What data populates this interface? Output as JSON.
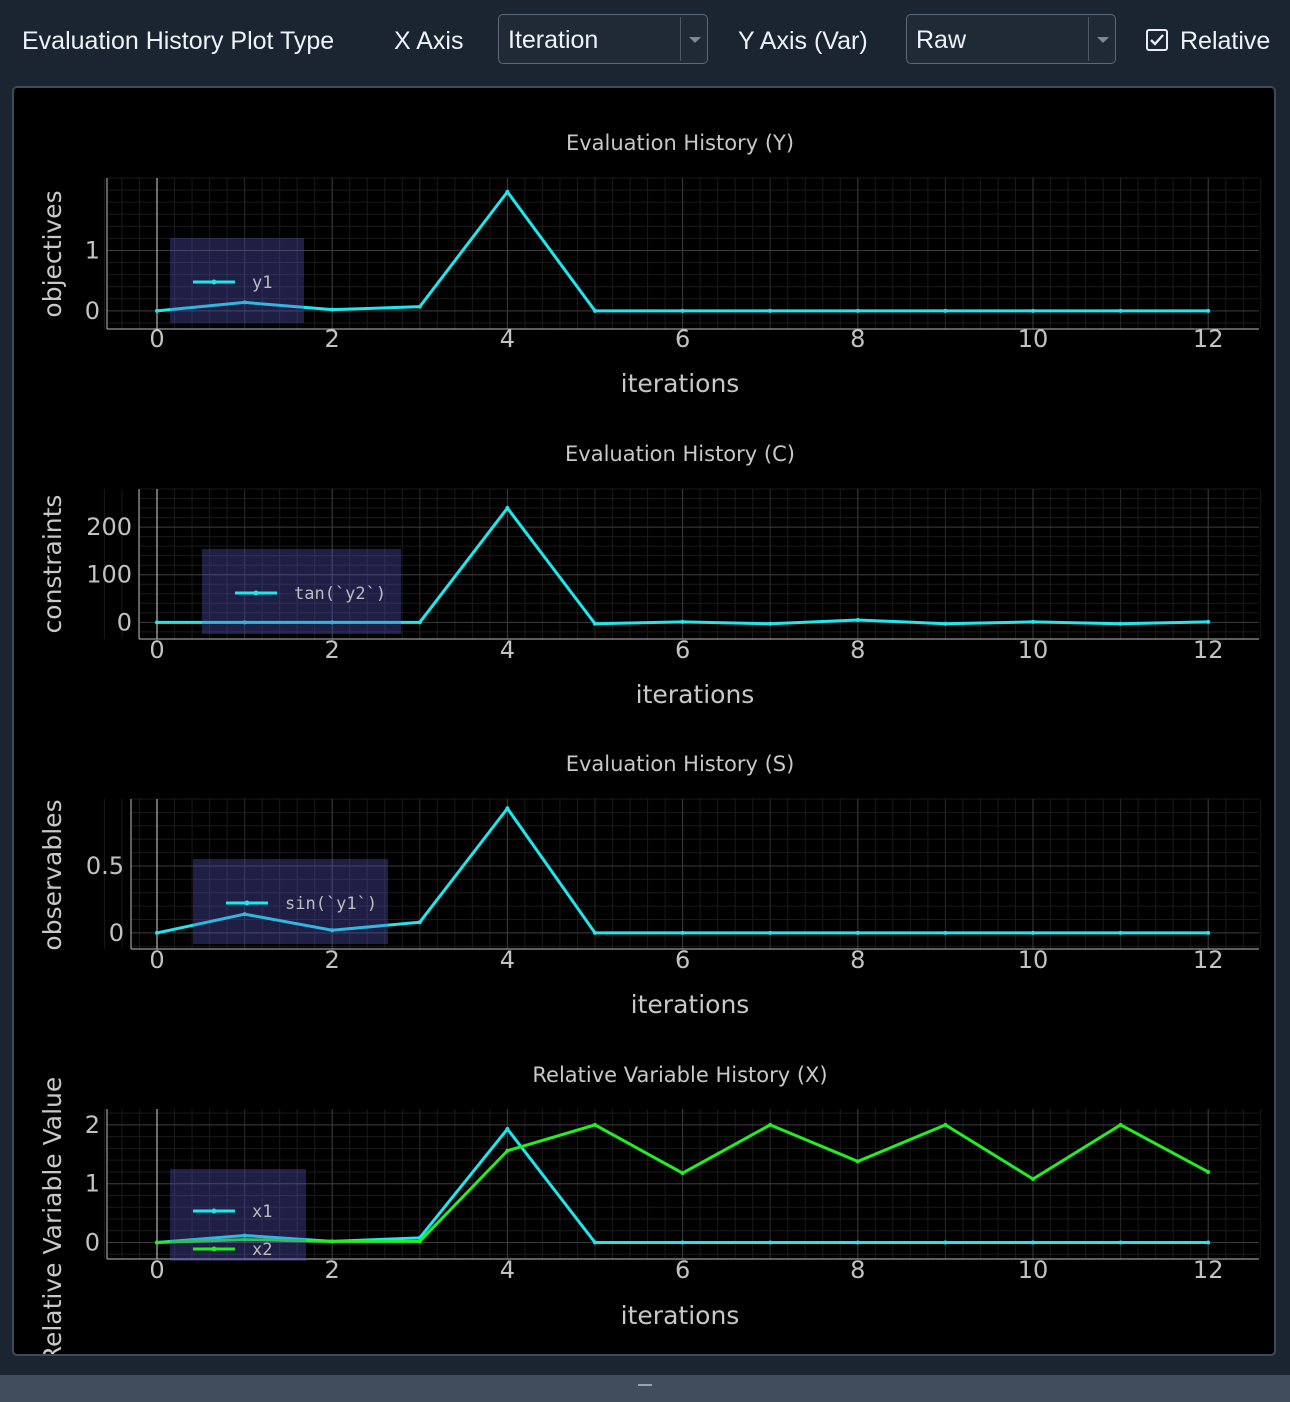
{
  "toolbar": {
    "plot_type_label": "Evaluation History Plot Type",
    "x_axis_label": "X Axis",
    "x_axis_value": "Iteration",
    "y_axis_label": "Y Axis (Var)",
    "y_axis_value": "Raw",
    "relative_label": "Relative",
    "relative_checked": true
  },
  "chart_data": [
    {
      "type": "line",
      "title": "Evaluation History (Y)",
      "xlabel": "iterations",
      "ylabel": "objectives",
      "xlim": [
        -0.6,
        12.6
      ],
      "ylim": [
        -0.3,
        2.2
      ],
      "xticks": [
        0,
        2,
        4,
        6,
        8,
        10,
        12
      ],
      "yticks": [
        0,
        1
      ],
      "grid": true,
      "legend": "top-left",
      "x": [
        0,
        1,
        2,
        3,
        4,
        5,
        6,
        7,
        8,
        9,
        10,
        11,
        12
      ],
      "series": [
        {
          "name": "y1",
          "color": "#1ee8ee",
          "values": [
            0,
            0.14,
            0.02,
            0.07,
            1.97,
            0,
            0,
            0,
            0,
            0,
            0,
            0,
            0
          ]
        }
      ]
    },
    {
      "type": "line",
      "title": "Evaluation History (C)",
      "xlabel": "iterations",
      "ylabel": "constraints",
      "xlim": [
        -0.6,
        12.6
      ],
      "ylim": [
        -35,
        280
      ],
      "xticks": [
        0,
        2,
        4,
        6,
        8,
        10,
        12
      ],
      "yticks": [
        0,
        100,
        200
      ],
      "grid": true,
      "legend": "top-left",
      "x": [
        0,
        1,
        2,
        3,
        4,
        5,
        6,
        7,
        8,
        9,
        10,
        11,
        12
      ],
      "series": [
        {
          "name": "tan(`y2`)",
          "color": "#1ee8ee",
          "values": [
            0,
            0,
            0,
            0,
            240,
            -3,
            1,
            -3,
            5,
            -3,
            1,
            -3,
            1
          ]
        }
      ]
    },
    {
      "type": "line",
      "title": "Evaluation History (S)",
      "xlabel": "iterations",
      "ylabel": "observables",
      "xlim": [
        -0.6,
        12.6
      ],
      "ylim": [
        -0.12,
        1.0
      ],
      "xticks": [
        0,
        2,
        4,
        6,
        8,
        10,
        12
      ],
      "yticks": [
        0,
        0.5
      ],
      "grid": true,
      "legend": "top-left",
      "x": [
        0,
        1,
        2,
        3,
        4,
        5,
        6,
        7,
        8,
        9,
        10,
        11,
        12
      ],
      "series": [
        {
          "name": "sin(`y1`)",
          "color": "#1ee8ee",
          "values": [
            0,
            0.14,
            0.02,
            0.08,
            0.93,
            0,
            0,
            0,
            0,
            0,
            0,
            0,
            0
          ]
        }
      ]
    },
    {
      "type": "line",
      "title": "Relative Variable History (X)",
      "xlabel": "iterations",
      "ylabel": "Relative Variable Value",
      "xlim": [
        -0.6,
        12.6
      ],
      "ylim": [
        -0.28,
        2.27
      ],
      "xticks": [
        0,
        2,
        4,
        6,
        8,
        10,
        12
      ],
      "yticks": [
        0,
        1,
        2
      ],
      "grid": true,
      "legend": "top-left",
      "x": [
        0,
        1,
        2,
        3,
        4,
        5,
        6,
        7,
        8,
        9,
        10,
        11,
        12
      ],
      "series": [
        {
          "name": "x1",
          "color": "#1ee8ee",
          "values": [
            0,
            0.12,
            0.02,
            0.08,
            1.93,
            0,
            0,
            0,
            0,
            0,
            0,
            0,
            0
          ]
        },
        {
          "name": "x2",
          "color": "#22ee22",
          "values": [
            0,
            0.05,
            0.02,
            0.02,
            1.56,
            2.0,
            1.18,
            2.0,
            1.38,
            2.0,
            1.08,
            2.0,
            1.2
          ]
        }
      ]
    }
  ]
}
